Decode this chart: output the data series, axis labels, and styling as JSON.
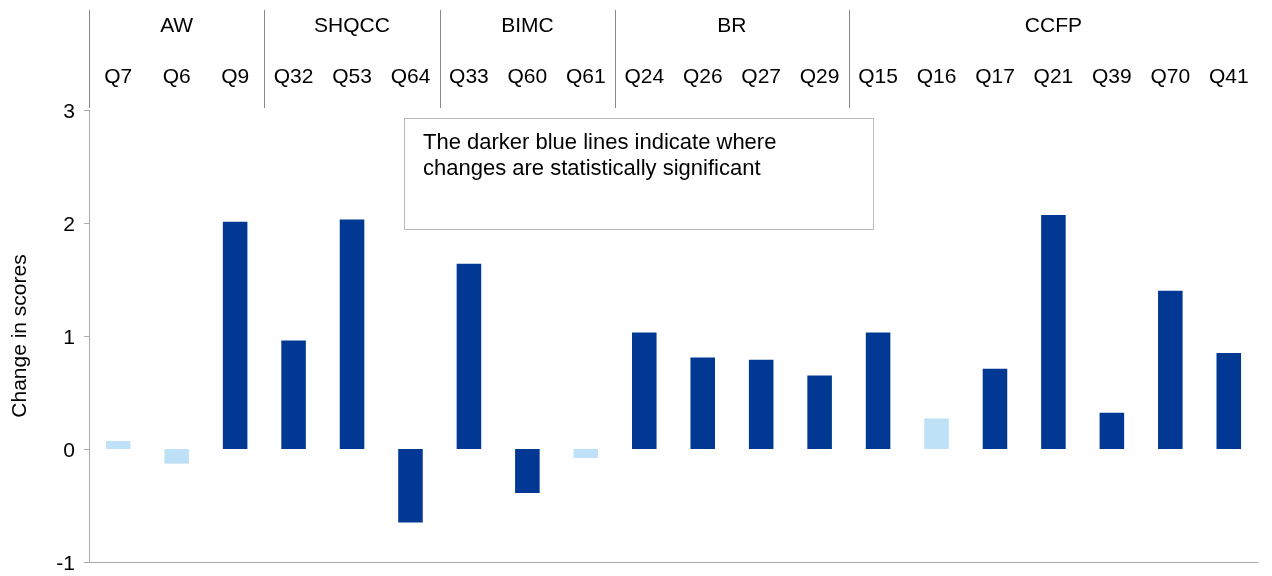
{
  "chart_data": {
    "type": "bar",
    "ylabel": "Change in scores",
    "categories": [
      "Q7",
      "Q6",
      "Q9",
      "Q32",
      "Q53",
      "Q64",
      "Q33",
      "Q60",
      "Q61",
      "Q24",
      "Q26",
      "Q27",
      "Q29",
      "Q15",
      "Q16",
      "Q17",
      "Q21",
      "Q39",
      "Q70",
      "Q41"
    ],
    "values": [
      0.07,
      -0.13,
      2.01,
      0.96,
      2.03,
      -0.65,
      1.64,
      -0.39,
      -0.08,
      1.03,
      0.81,
      0.79,
      0.65,
      1.03,
      0.27,
      0.71,
      2.07,
      0.32,
      1.4,
      0.85
    ],
    "colors": [
      "#bfe1f7",
      "#bfe1f7",
      "#003893",
      "#003893",
      "#003893",
      "#003893",
      "#003893",
      "#003893",
      "#bfe1f7",
      "#003893",
      "#003893",
      "#003893",
      "#003893",
      "#003893",
      "#bfe1f7",
      "#003893",
      "#003893",
      "#003893",
      "#003893",
      "#003893"
    ],
    "ylim": [
      -1,
      3
    ],
    "yticks": [
      -1,
      0,
      1,
      2,
      3
    ],
    "grid": false,
    "annotations": [
      "AW",
      "SHQCC",
      "BIMC",
      "BR",
      "CCFP",
      "The darker blue lines indicate where changes are statistically significant"
    ]
  }
}
